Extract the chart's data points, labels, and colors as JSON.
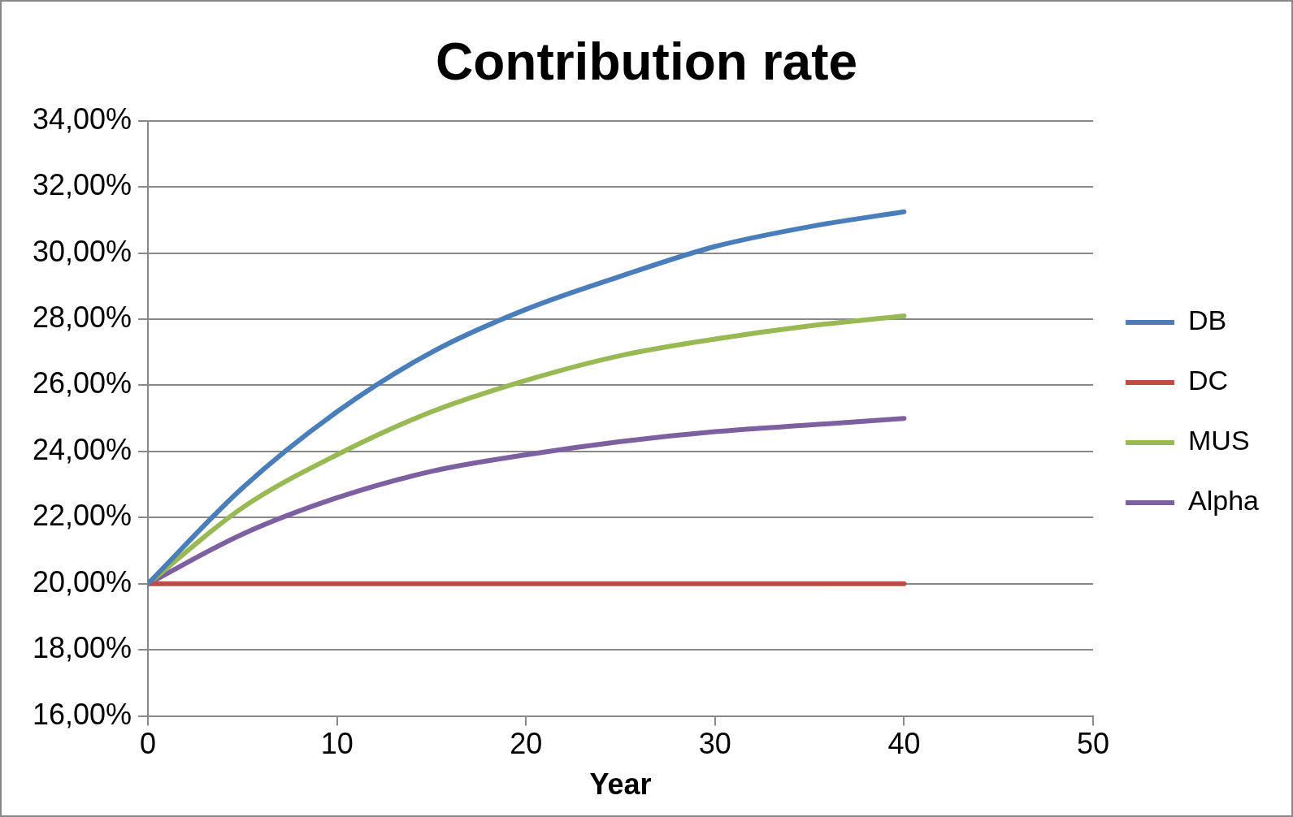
{
  "chart_data": {
    "type": "line",
    "title": "Contribution rate",
    "xlabel": "Year",
    "x": [
      0,
      5,
      10,
      15,
      20,
      25,
      30,
      35,
      40
    ],
    "series": [
      {
        "name": "DB",
        "color": "#4a7ebb",
        "values": [
          20,
          22.9,
          25.2,
          27.0,
          28.3,
          29.3,
          30.2,
          30.8,
          31.25
        ]
      },
      {
        "name": "DC",
        "color": "#be4b48",
        "values": [
          20,
          20,
          20,
          20,
          20,
          20,
          20,
          20,
          20
        ]
      },
      {
        "name": "MUS",
        "color": "#98b954",
        "values": [
          20,
          22.3,
          23.9,
          25.2,
          26.15,
          26.9,
          27.4,
          27.8,
          28.1
        ]
      },
      {
        "name": "Alpha",
        "color": "#7d60a0",
        "values": [
          20,
          21.5,
          22.6,
          23.4,
          23.9,
          24.3,
          24.6,
          24.8,
          25.0
        ]
      }
    ],
    "xlim": [
      0,
      50
    ],
    "xticks": [
      0,
      10,
      20,
      30,
      40,
      50
    ],
    "ylim": [
      16,
      34
    ],
    "yticks": [
      {
        "value": 16,
        "label": "16,00%"
      },
      {
        "value": 18,
        "label": "18,00%"
      },
      {
        "value": 20,
        "label": "20,00%"
      },
      {
        "value": 22,
        "label": "22,00%"
      },
      {
        "value": 24,
        "label": "24,00%"
      },
      {
        "value": 26,
        "label": "26,00%"
      },
      {
        "value": 28,
        "label": "28,00%"
      },
      {
        "value": 30,
        "label": "30,00%"
      },
      {
        "value": 32,
        "label": "32,00%"
      },
      {
        "value": 34,
        "label": "34,00%"
      }
    ],
    "grid": "y",
    "legend": "right",
    "marker": "none",
    "line_style": "solid"
  }
}
